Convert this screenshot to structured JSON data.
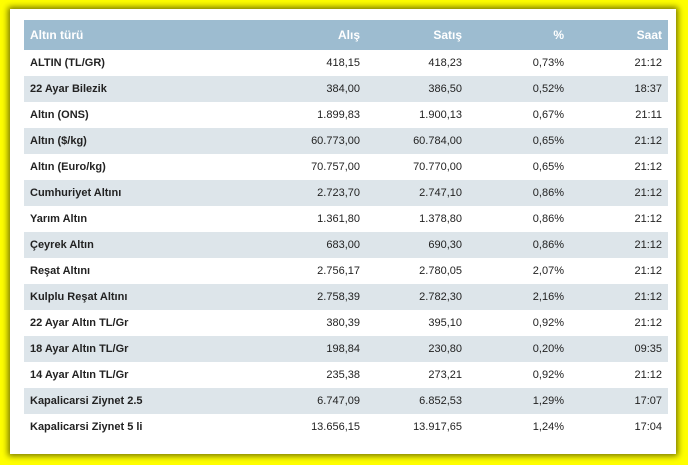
{
  "table": {
    "headers": {
      "name": "Altın türü",
      "buy": "Alış",
      "sell": "Satış",
      "pct": "%",
      "time": "Saat"
    },
    "rows": [
      {
        "name": "ALTIN (TL/GR)",
        "buy": "418,15",
        "sell": "418,23",
        "pct": "0,73%",
        "time": "21:12"
      },
      {
        "name": "22 Ayar Bilezik",
        "buy": "384,00",
        "sell": "386,50",
        "pct": "0,52%",
        "time": "18:37"
      },
      {
        "name": "Altın (ONS)",
        "buy": "1.899,83",
        "sell": "1.900,13",
        "pct": "0,67%",
        "time": "21:11"
      },
      {
        "name": "Altın ($/kg)",
        "buy": "60.773,00",
        "sell": "60.784,00",
        "pct": "0,65%",
        "time": "21:12"
      },
      {
        "name": "Altın (Euro/kg)",
        "buy": "70.757,00",
        "sell": "70.770,00",
        "pct": "0,65%",
        "time": "21:12"
      },
      {
        "name": "Cumhuriyet Altını",
        "buy": "2.723,70",
        "sell": "2.747,10",
        "pct": "0,86%",
        "time": "21:12"
      },
      {
        "name": "Yarım Altın",
        "buy": "1.361,80",
        "sell": "1.378,80",
        "pct": "0,86%",
        "time": "21:12"
      },
      {
        "name": "Çeyrek Altın",
        "buy": "683,00",
        "sell": "690,30",
        "pct": "0,86%",
        "time": "21:12"
      },
      {
        "name": "Reşat Altını",
        "buy": "2.756,17",
        "sell": "2.780,05",
        "pct": "2,07%",
        "time": "21:12"
      },
      {
        "name": "Kulplu Reşat Altını",
        "buy": "2.758,39",
        "sell": "2.782,30",
        "pct": "2,16%",
        "time": "21:12"
      },
      {
        "name": "22 Ayar Altın TL/Gr",
        "buy": "380,39",
        "sell": "395,10",
        "pct": "0,92%",
        "time": "21:12"
      },
      {
        "name": "18 Ayar Altın TL/Gr",
        "buy": "198,84",
        "sell": "230,80",
        "pct": "0,20%",
        "time": "09:35"
      },
      {
        "name": "14 Ayar Altın TL/Gr",
        "buy": "235,38",
        "sell": "273,21",
        "pct": "0,92%",
        "time": "21:12"
      },
      {
        "name": "Kapalicarsi Ziynet 2.5",
        "buy": "6.747,09",
        "sell": "6.852,53",
        "pct": "1,29%",
        "time": "17:07"
      },
      {
        "name": "Kapalicarsi Ziynet 5 li",
        "buy": "13.656,15",
        "sell": "13.917,65",
        "pct": "1,24%",
        "time": "17:04"
      }
    ]
  },
  "colors": {
    "page_background": "#ffff00",
    "header_background": "#9dbcd0",
    "header_text": "#ffffff",
    "row_alt_background": "#dde5ea"
  }
}
